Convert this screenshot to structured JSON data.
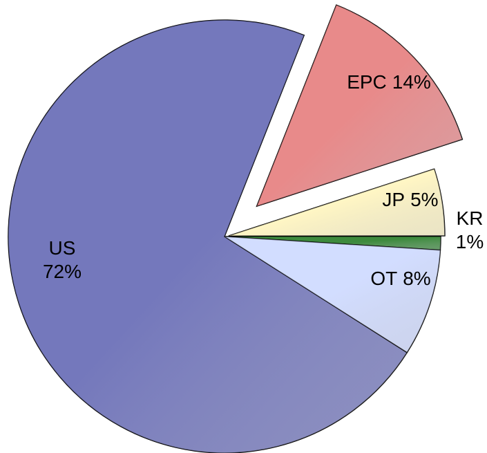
{
  "chart_data": {
    "type": "pie",
    "categories": [
      "US",
      "EPC",
      "JP",
      "KR",
      "OT"
    ],
    "values": [
      72,
      14,
      5,
      1,
      8
    ],
    "value_labels": [
      "72%",
      "14%",
      "5%",
      "1%",
      "8%"
    ],
    "colors": [
      "#7478bc",
      "#e88a8a",
      "#fff6c4",
      "#3d8a3d",
      "#d2ddff"
    ],
    "exploded": [
      "EPC",
      "JP"
    ]
  }
}
